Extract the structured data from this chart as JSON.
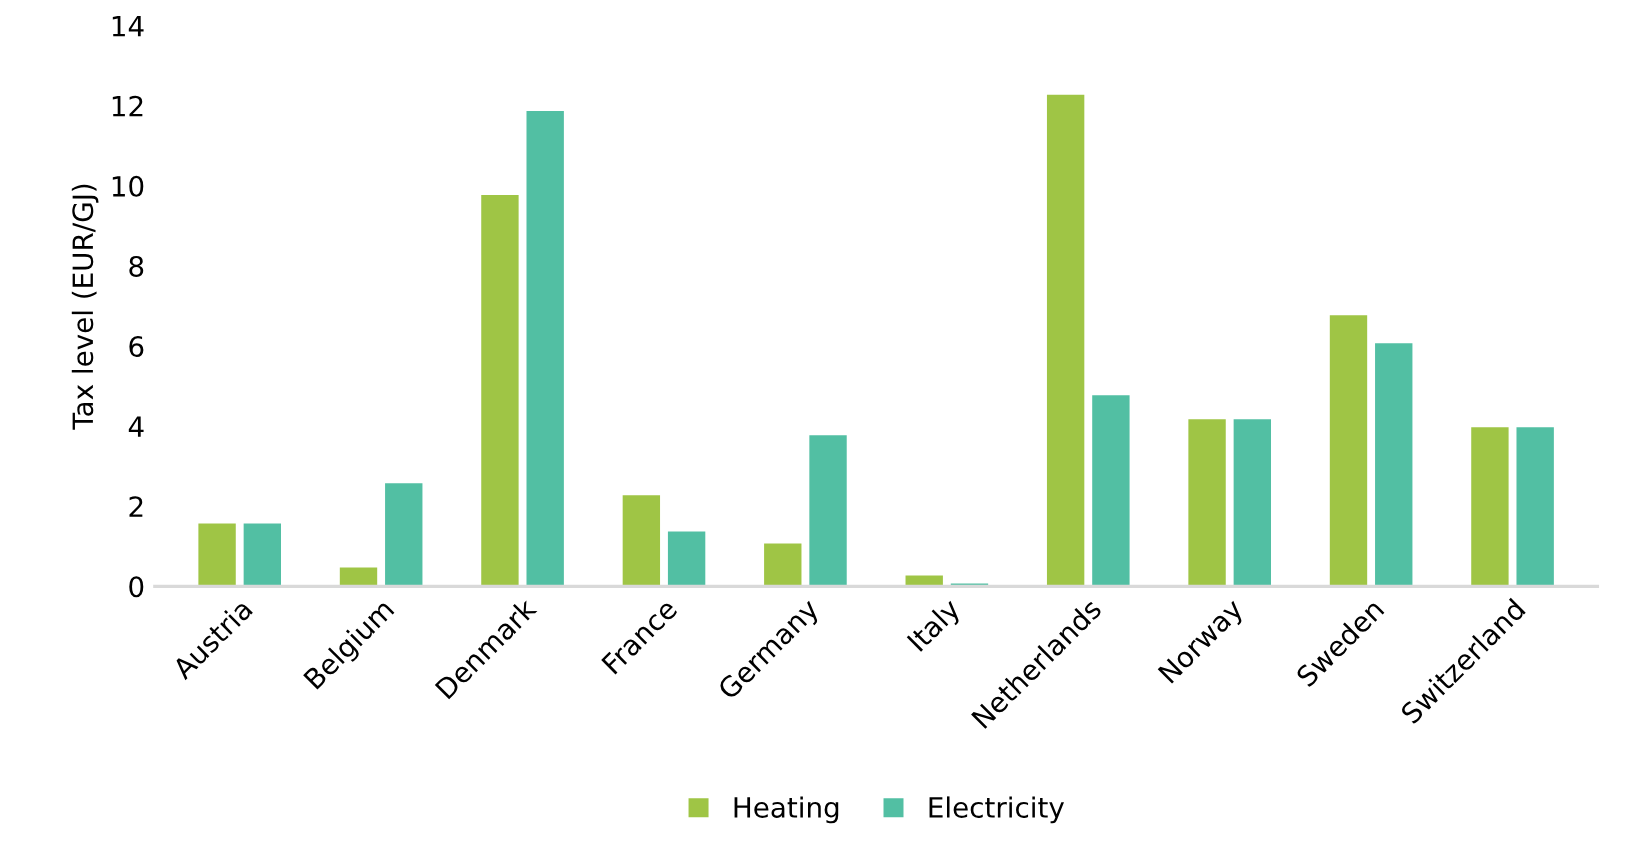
{
  "chart_data": {
    "type": "bar",
    "ylabel": "Tax level (EUR/GJ)",
    "categories": [
      "Austria",
      "Belgium",
      "Denmark",
      "France",
      "Germany",
      "Italy",
      "Netherlands",
      "Norway",
      "Sweden",
      "Switzerland"
    ],
    "series": [
      {
        "name": "Heating",
        "color": "#9fc545",
        "values": [
          1.6,
          0.5,
          9.8,
          2.3,
          1.1,
          0.3,
          12.3,
          4.2,
          6.8,
          4.0
        ]
      },
      {
        "name": "Electricity",
        "color": "#52bfa3",
        "values": [
          1.6,
          2.6,
          11.9,
          1.4,
          3.8,
          0.1,
          4.8,
          4.2,
          6.1,
          4.0
        ]
      }
    ],
    "ylim": [
      0,
      14
    ],
    "yticks": [
      0,
      2,
      4,
      6,
      8,
      10,
      12,
      14
    ],
    "grid": false,
    "legend": "bottom"
  }
}
